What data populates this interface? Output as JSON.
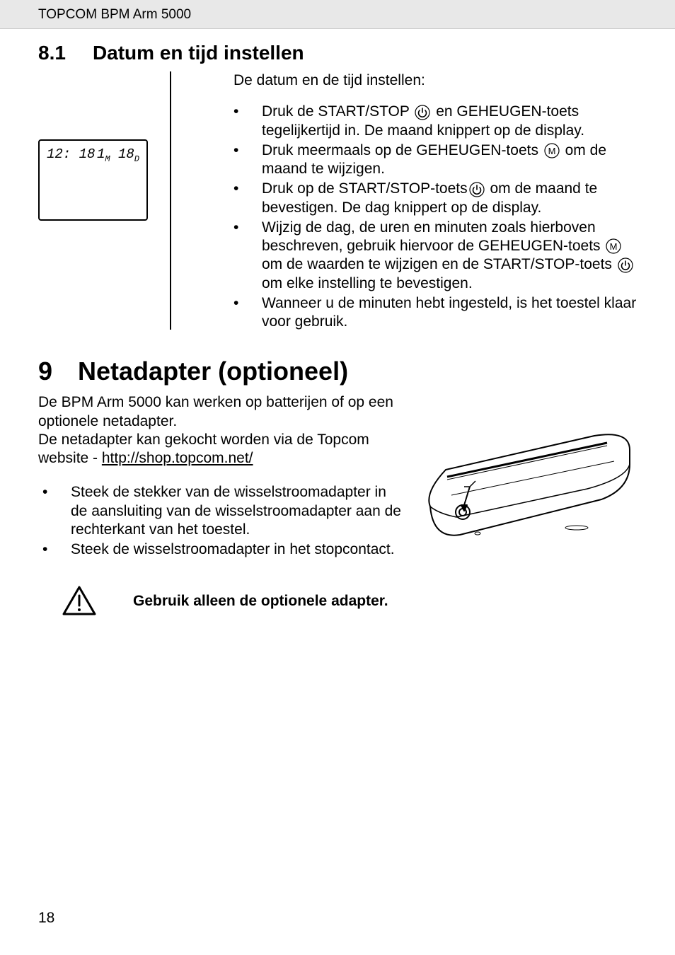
{
  "header": {
    "title": "TOPCOM BPM Arm 5000"
  },
  "section81": {
    "number": "8.1",
    "title": "Datum en tijd instellen",
    "intro": "De datum en de tijd instellen:",
    "display": {
      "time": "12: 18",
      "month_val": "1",
      "month_suffix": "M",
      "day_val": " 18",
      "day_suffix": "D"
    },
    "bullets": [
      {
        "parts": [
          "Druk de START/STOP ",
          "ICON_POWER",
          " en GEHEUGEN-toets tegelijkertijd in. De maand knippert op de display."
        ]
      },
      {
        "parts": [
          "Druk meermaals op de GEHEUGEN-toets ",
          "ICON_M",
          " om de maand te wijzigen."
        ]
      },
      {
        "parts": [
          "Druk op de START/STOP-toets",
          "ICON_POWER",
          " om de maand te bevestigen. De dag knippert op de display."
        ]
      },
      {
        "parts": [
          "Wijzig de dag, de uren en minuten zoals hierboven beschreven, gebruik hiervoor de GEHEUGEN-toets ",
          "ICON_M",
          " om de waarden te wijzigen en de START/STOP-toets ",
          "ICON_POWER",
          " om elke instelling te bevestigen."
        ]
      },
      {
        "parts": [
          "Wanneer u de minuten hebt ingesteld, is het toestel klaar voor gebruik."
        ]
      }
    ]
  },
  "section9": {
    "number": "9",
    "title": "Netadapter (optioneel)",
    "para1": "De BPM Arm 5000 kan werken op batterijen of op een optionele netadapter.",
    "para2_prefix": "De netadapter kan gekocht worden via de Topcom website - ",
    "url": "http://shop.topcom.net/",
    "bullets": [
      "Steek de stekker van de wisselstroomadapter in de aansluiting van de wisselstroomadapter aan de rechterkant van het toestel.",
      "Steek de wisselstroomadapter in het stopcontact."
    ],
    "warning": "Gebruik alleen de optionele adapter."
  },
  "page_number": "18",
  "colors": {
    "header_bg": "#e8e8e8",
    "text": "#000000",
    "bg": "#ffffff"
  }
}
